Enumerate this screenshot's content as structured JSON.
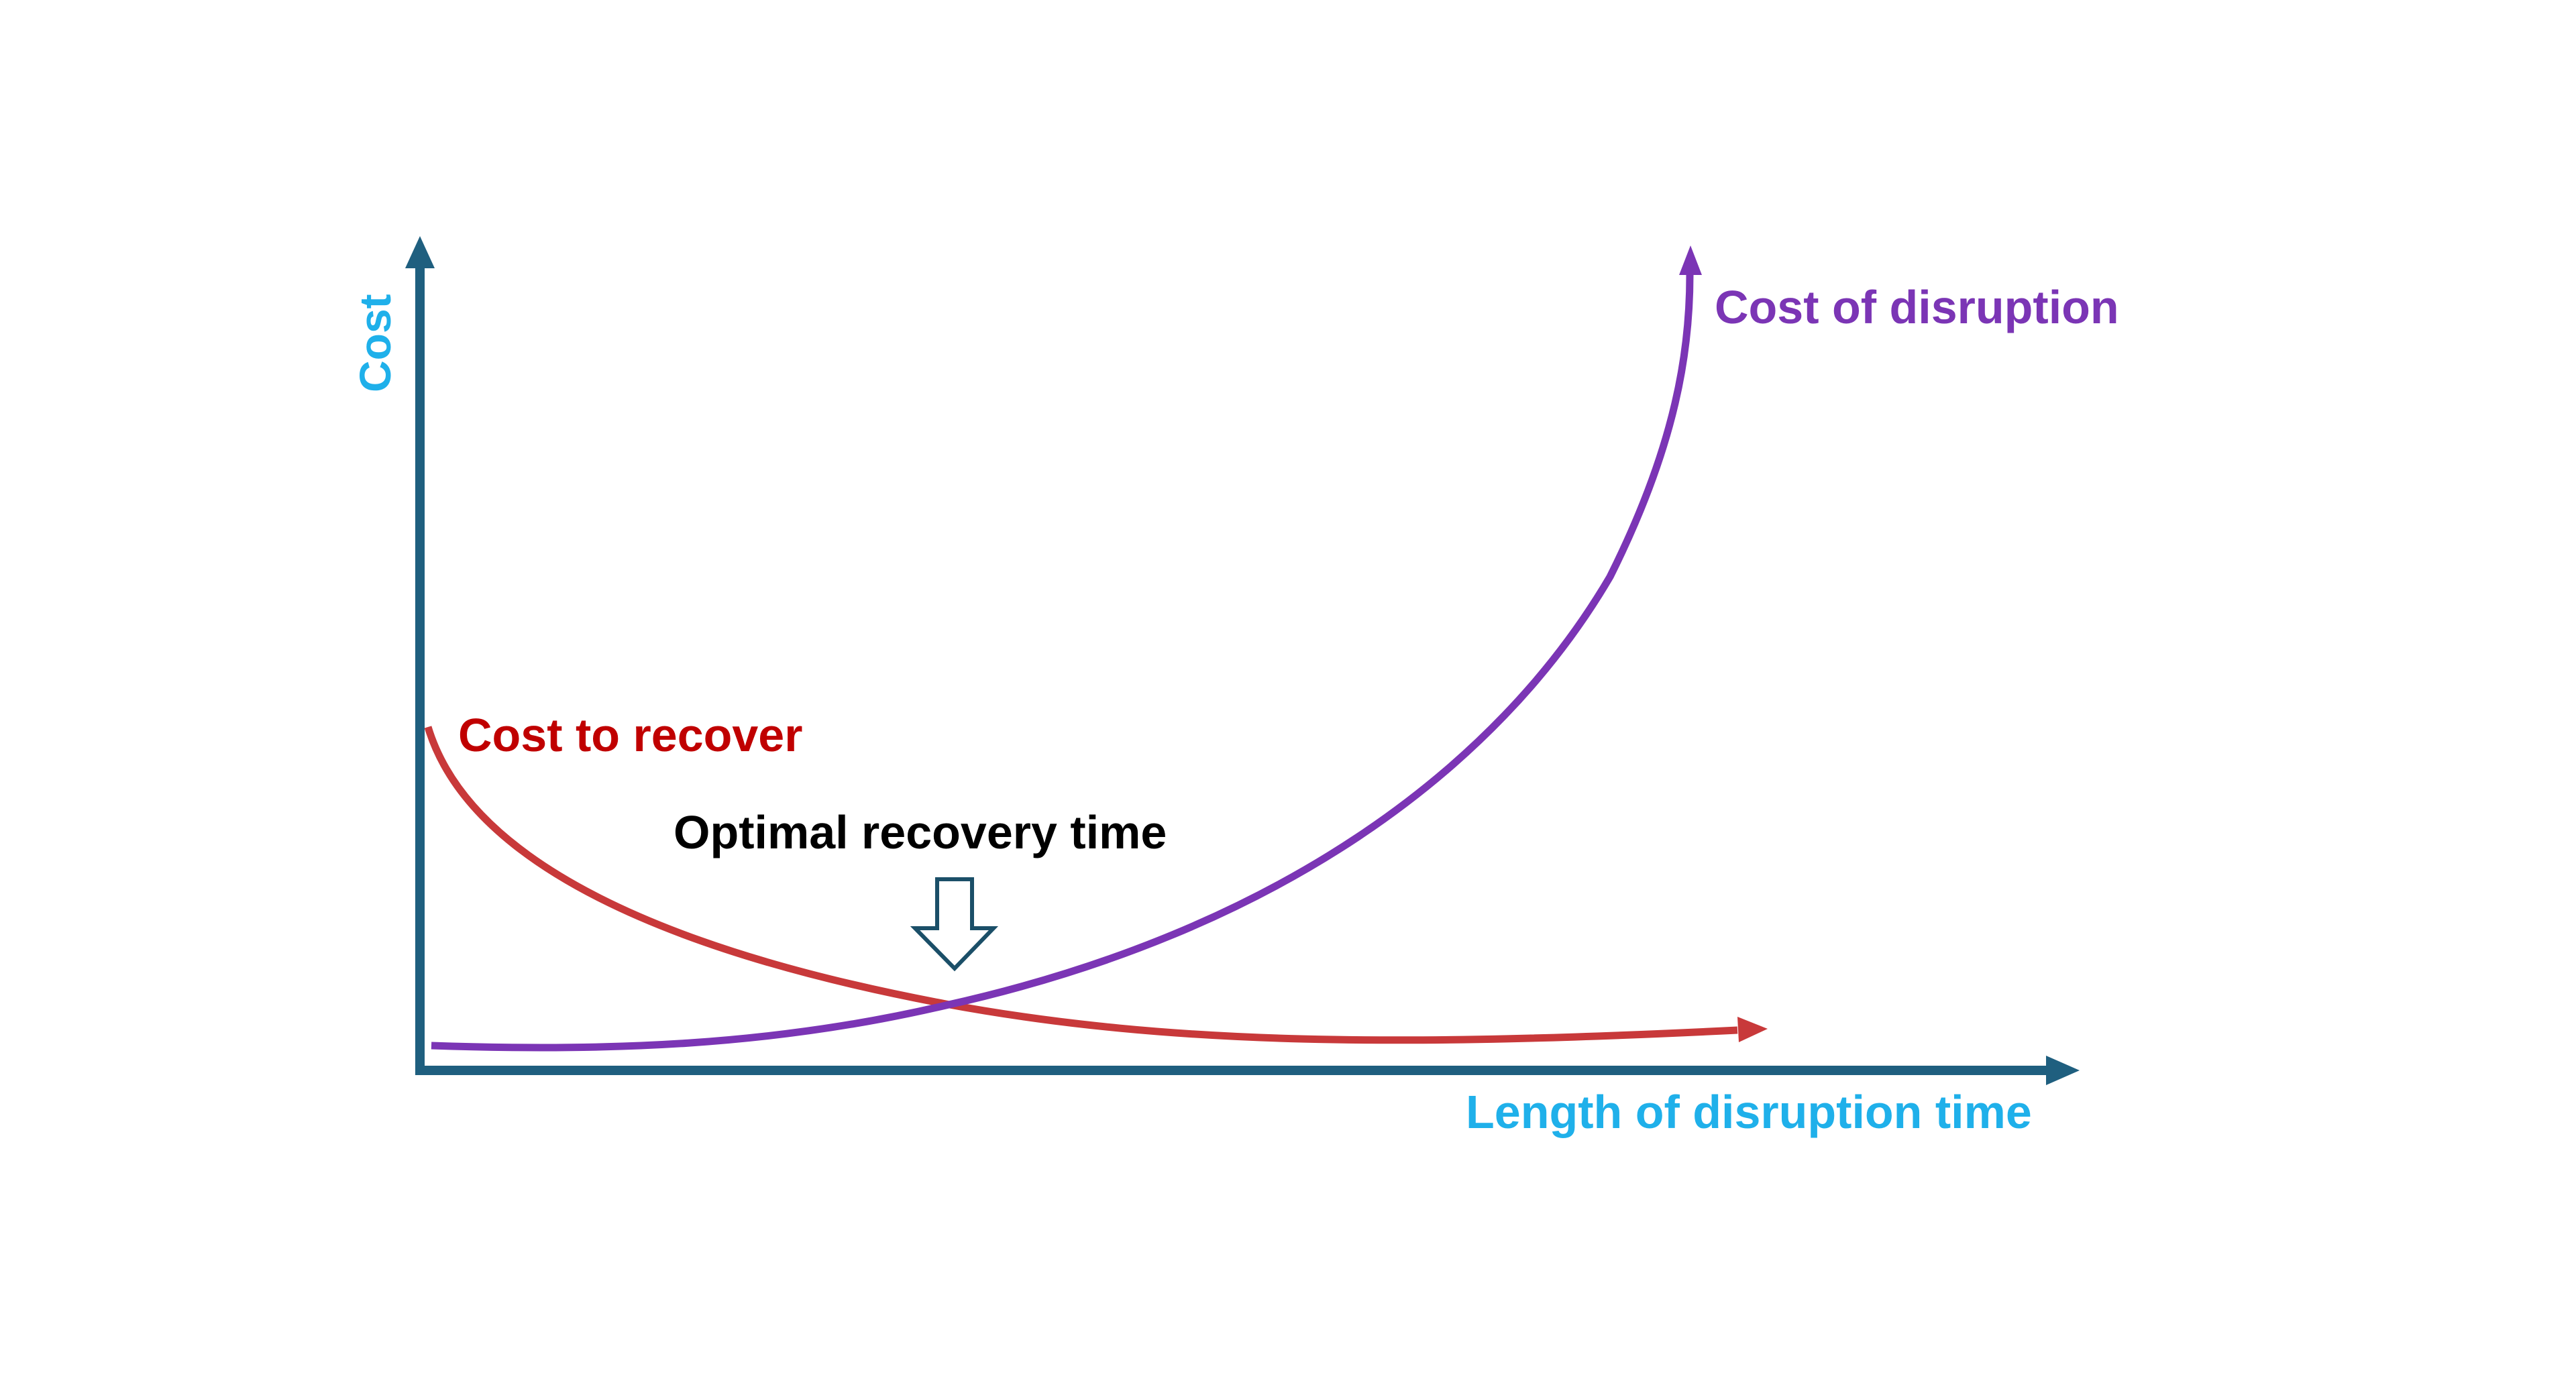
{
  "diagram": {
    "y_axis_label": "Cost",
    "x_axis_label": "Length of disruption time",
    "curves": [
      {
        "label": "Cost of disruption",
        "trend": "rising",
        "color": "#7b35b5"
      },
      {
        "label": "Cost to recover",
        "trend": "falling",
        "color": "#c8393a"
      }
    ],
    "cost_to_recover_label_color": "#c00000",
    "annotation": "Optimal recovery time",
    "annotation_icon": "hollow-down-arrow-icon",
    "axis_color": "#1f5f7f",
    "axis_label_color": "#1fb0ea"
  }
}
